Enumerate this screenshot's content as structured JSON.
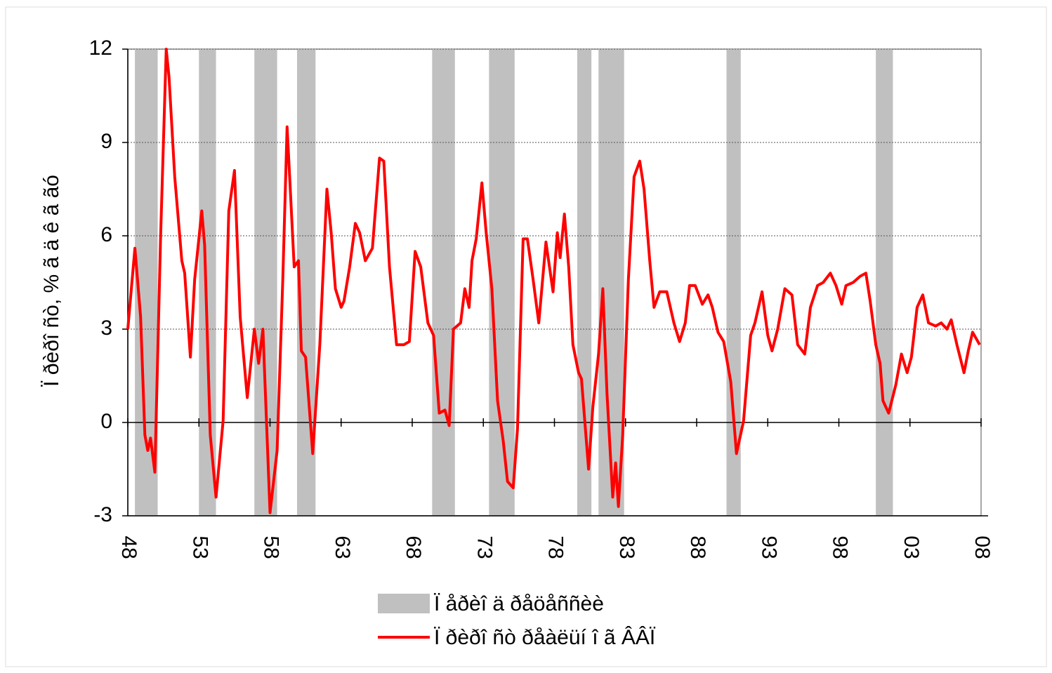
{
  "chart_data": {
    "type": "line",
    "y_label": "Ï ðèðî ñò, % ã ä ê ã ãó",
    "bands": {
      "name": "Ï åðèî ä ðåöåññèè",
      "color": "#c0c0c0",
      "ranges": [
        [
          1948.5,
          1950.1
        ],
        [
          1953.0,
          1954.2
        ],
        [
          1956.9,
          1958.5
        ],
        [
          1959.9,
          1961.2
        ],
        [
          1969.4,
          1971.0
        ],
        [
          1973.4,
          1975.2
        ],
        [
          1979.6,
          1980.6
        ],
        [
          1981.1,
          1982.9
        ],
        [
          1990.1,
          1991.1
        ],
        [
          2000.6,
          2001.8
        ]
      ]
    },
    "x": [
      1948.0,
      1948.5,
      1948.9,
      1949.2,
      1949.4,
      1949.6,
      1949.9,
      1950.3,
      1950.7,
      1950.9,
      1951.3,
      1951.8,
      1952.0,
      1952.4,
      1952.7,
      1953.2,
      1953.4,
      1953.8,
      1954.2,
      1954.7,
      1955.1,
      1955.5,
      1955.9,
      1956.4,
      1956.9,
      1957.2,
      1957.5,
      1958.0,
      1958.5,
      1958.9,
      1959.2,
      1959.4,
      1959.7,
      1960.0,
      1960.2,
      1960.5,
      1961.0,
      1961.5,
      1962.0,
      1962.3,
      1962.6,
      1963.0,
      1963.2,
      1963.6,
      1964.0,
      1964.3,
      1964.7,
      1965.2,
      1965.7,
      1966.0,
      1966.4,
      1966.9,
      1967.4,
      1967.8,
      1968.2,
      1968.6,
      1969.1,
      1969.5,
      1969.9,
      1970.3,
      1970.6,
      1970.9,
      1971.4,
      1971.7,
      1972.0,
      1972.2,
      1972.5,
      1972.9,
      1973.2,
      1973.6,
      1974.0,
      1974.4,
      1974.7,
      1975.1,
      1975.4,
      1975.8,
      1976.1,
      1976.5,
      1976.9,
      1977.4,
      1977.9,
      1978.2,
      1978.4,
      1978.7,
      1979.0,
      1979.3,
      1979.7,
      1979.9,
      1980.4,
      1980.7,
      1981.1,
      1981.4,
      1981.7,
      1982.1,
      1982.3,
      1982.5,
      1982.8,
      1983.2,
      1983.6,
      1984.0,
      1984.3,
      1984.7,
      1985.0,
      1985.4,
      1985.9,
      1986.4,
      1986.8,
      1987.2,
      1987.5,
      1987.9,
      1988.4,
      1988.8,
      1989.1,
      1989.5,
      1989.9,
      1990.4,
      1990.8,
      1991.3,
      1991.8,
      1992.1,
      1992.6,
      1993.0,
      1993.3,
      1993.7,
      1994.2,
      1994.7,
      1995.1,
      1995.6,
      1996.0,
      1996.5,
      1996.9,
      1997.4,
      1997.8,
      1998.2,
      1998.5,
      1999.0,
      1999.5,
      1999.9,
      2000.2,
      2000.6,
      2000.9,
      2001.1,
      2001.5,
      2002.0,
      2002.4,
      2002.8,
      2003.1,
      2003.5,
      2003.9,
      2004.3,
      2004.8,
      2005.2,
      2005.6,
      2005.9,
      2006.3,
      2006.8,
      2007.1,
      2007.4,
      2007.9
    ],
    "series": [
      {
        "name": "Ï ðèðî ñò ðåàëüí î ã ÂÂÏ",
        "color": "#ff0000",
        "values": [
          3.0,
          5.6,
          3.4,
          -0.4,
          -0.9,
          -0.5,
          -1.6,
          5.9,
          12.0,
          11.1,
          7.9,
          5.2,
          4.8,
          2.1,
          4.6,
          6.8,
          5.7,
          -0.4,
          -2.4,
          0.05,
          6.8,
          8.1,
          3.4,
          0.8,
          3.0,
          1.9,
          3.0,
          -2.9,
          -0.9,
          4.6,
          9.5,
          7.7,
          5.0,
          5.2,
          2.3,
          2.1,
          -1.0,
          2.5,
          7.5,
          6.1,
          4.3,
          3.7,
          3.9,
          5.0,
          6.4,
          6.1,
          5.2,
          5.6,
          8.5,
          8.4,
          5.0,
          2.5,
          2.5,
          2.6,
          5.5,
          5.0,
          3.2,
          2.8,
          0.3,
          0.4,
          -0.1,
          3.0,
          3.2,
          4.3,
          3.7,
          5.2,
          5.9,
          7.7,
          6.1,
          4.3,
          0.7,
          -0.6,
          -1.9,
          -2.1,
          -0.2,
          5.9,
          5.9,
          4.6,
          3.2,
          5.8,
          4.2,
          6.1,
          5.3,
          6.7,
          5.0,
          2.5,
          1.6,
          1.4,
          -1.5,
          0.5,
          2.2,
          4.3,
          0.9,
          -2.4,
          -1.3,
          -2.7,
          -0.4,
          4.6,
          7.9,
          8.4,
          7.5,
          5.2,
          3.7,
          4.2,
          4.2,
          3.2,
          2.6,
          3.2,
          4.4,
          4.4,
          3.8,
          4.1,
          3.7,
          2.9,
          2.6,
          1.3,
          -1.0,
          0.05,
          2.8,
          3.2,
          4.2,
          2.8,
          2.3,
          3.0,
          4.3,
          4.1,
          2.5,
          2.2,
          3.7,
          4.4,
          4.5,
          4.8,
          4.4,
          3.8,
          4.4,
          4.5,
          4.7,
          4.8,
          3.9,
          2.5,
          1.9,
          0.7,
          0.3,
          1.2,
          2.2,
          1.6,
          2.1,
          3.7,
          4.1,
          3.2,
          3.1,
          3.2,
          3.0,
          3.3,
          2.5,
          1.6,
          2.3,
          2.9,
          2.5
        ]
      }
    ],
    "xlim": [
      1948,
      2008
    ],
    "xticks": [
      {
        "value": 1948,
        "label": "48"
      },
      {
        "value": 1953,
        "label": "53"
      },
      {
        "value": 1958,
        "label": "58"
      },
      {
        "value": 1963,
        "label": "63"
      },
      {
        "value": 1968,
        "label": "68"
      },
      {
        "value": 1973,
        "label": "73"
      },
      {
        "value": 1978,
        "label": "78"
      },
      {
        "value": 1983,
        "label": "83"
      },
      {
        "value": 1988,
        "label": "88"
      },
      {
        "value": 1993,
        "label": "93"
      },
      {
        "value": 1998,
        "label": "98"
      },
      {
        "value": 2003,
        "label": "03"
      },
      {
        "value": 2008,
        "label": "08"
      }
    ],
    "ylim": [
      -3,
      12
    ],
    "yticks": [
      -3,
      0,
      3,
      6,
      9,
      12
    ],
    "grid": true
  }
}
